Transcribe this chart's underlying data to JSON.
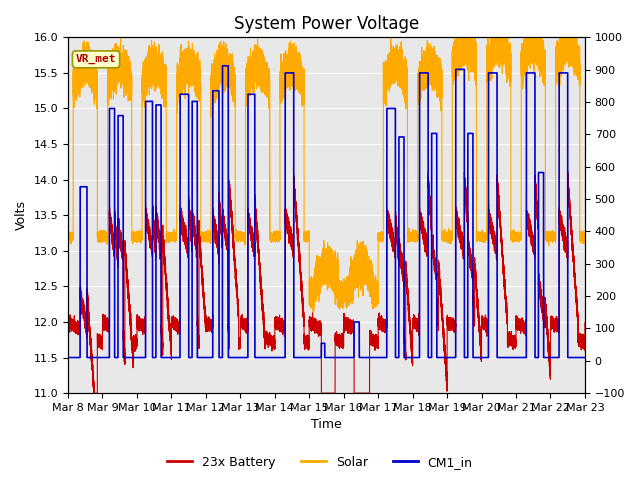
{
  "title": "System Power Voltage",
  "xlabel": "Time",
  "ylabel": "Volts",
  "ylim_left": [
    11.0,
    16.0
  ],
  "ylim_right": [
    -100,
    1000
  ],
  "yticks_left": [
    11.0,
    11.5,
    12.0,
    12.5,
    13.0,
    13.5,
    14.0,
    14.5,
    15.0,
    15.5,
    16.0
  ],
  "yticks_right": [
    -100,
    0,
    100,
    200,
    300,
    400,
    500,
    600,
    700,
    800,
    900,
    1000
  ],
  "xtick_labels": [
    "Mar 8",
    "Mar 9",
    "Mar 10",
    "Mar 11",
    "Mar 12",
    "Mar 13",
    "Mar 14",
    "Mar 15",
    "Mar 16",
    "Mar 17",
    "Mar 18",
    "Mar 19",
    "Mar 20",
    "Mar 21",
    "Mar 22",
    "Mar 23"
  ],
  "legend_labels": [
    "23x Battery",
    "Solar",
    "CM1_in"
  ],
  "color_battery": "#cc0000",
  "color_solar": "#ffaa00",
  "color_cm1": "#0000cc",
  "vr_met_label": "VR_met",
  "vr_met_color": "#aa0000",
  "plot_bg_color": "#e8e8e8",
  "grid_color": "#ffffff",
  "title_fontsize": 12,
  "axis_fontsize": 9,
  "tick_fontsize": 8
}
